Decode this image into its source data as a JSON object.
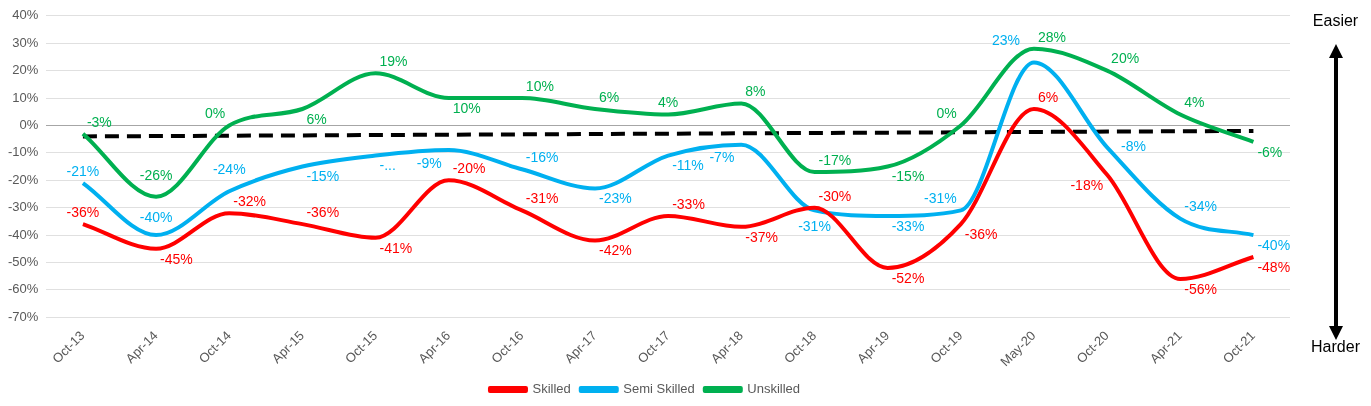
{
  "chart_data": {
    "type": "line",
    "categories": [
      "Oct-13",
      "Apr-14",
      "Oct-14",
      "Apr-15",
      "Oct-15",
      "Apr-16",
      "Oct-16",
      "Apr-17",
      "Oct-17",
      "Apr-18",
      "Oct-18",
      "Apr-19",
      "Oct-19",
      "May-20",
      "Oct-20",
      "Apr-21",
      "Oct-21"
    ],
    "series": [
      {
        "name": "Skilled",
        "color": "#ff0000",
        "values": [
          -36,
          -45,
          -32,
          -36,
          -41,
          -20,
          -31,
          -42,
          -33,
          -37,
          -30,
          -52,
          -36,
          6,
          -18,
          -56,
          -48
        ],
        "value_labels": [
          "-36%",
          "-45%",
          "-32%",
          "-36%",
          "-41%",
          "-20%",
          "-31%",
          "-42%",
          "-33%",
          "-37%",
          "-30%",
          "-52%",
          "-36%",
          "6%",
          "-18%",
          "-56%",
          "-48%"
        ]
      },
      {
        "name": "Semi Skilled",
        "color": "#00b0f0",
        "values": [
          -21,
          -40,
          -24,
          -15,
          -11,
          -9,
          -16,
          -23,
          -11,
          -7,
          -31,
          -33,
          -31,
          23,
          -8,
          -34,
          -40
        ],
        "value_labels": [
          "-21%",
          "-40%",
          "-24%",
          "-15%",
          "-...",
          "-9%",
          "-16%",
          "-23%",
          "-11%",
          "-7%",
          "-31%",
          "-33%",
          "-31%",
          "23%",
          "-8%",
          "-34%",
          "-40%"
        ]
      },
      {
        "name": "Unskilled",
        "color": "#00b050",
        "values": [
          -3,
          -26,
          0,
          6,
          19,
          10,
          10,
          6,
          4,
          8,
          -17,
          -15,
          0,
          28,
          20,
          4,
          -6
        ],
        "value_labels": [
          "-3%",
          "-26%",
          "0%",
          "6%",
          "19%",
          "10%",
          "10%",
          "6%",
          "4%",
          "8%",
          "-17%",
          "-15%",
          "0%",
          "28%",
          "20%",
          "4%",
          "-6%"
        ]
      },
      {
        "color": "#000000",
        "line_style": "dashed",
        "values": [
          -4,
          null,
          null,
          null,
          null,
          null,
          null,
          null,
          null,
          null,
          null,
          null,
          null,
          null,
          null,
          null,
          -2
        ]
      }
    ],
    "ylim": [
      -70,
      40
    ],
    "yticks": [
      {
        "value": -70,
        "label": "-70%"
      },
      {
        "value": -60,
        "label": "-60%"
      },
      {
        "value": -50,
        "label": "-50%"
      },
      {
        "value": -40,
        "label": "-40%"
      },
      {
        "value": -30,
        "label": "-30%"
      },
      {
        "value": -20,
        "label": "-20%"
      },
      {
        "value": -10,
        "label": "-10%"
      },
      {
        "value": 0,
        "label": "0%"
      },
      {
        "value": 10,
        "label": "10%"
      },
      {
        "value": 20,
        "label": "20%"
      },
      {
        "value": 30,
        "label": "30%"
      },
      {
        "value": 40,
        "label": "40%"
      }
    ],
    "grid": "y",
    "legend": "bottom",
    "marker": "none",
    "annotations": [
      "Easier",
      "Harder"
    ]
  }
}
